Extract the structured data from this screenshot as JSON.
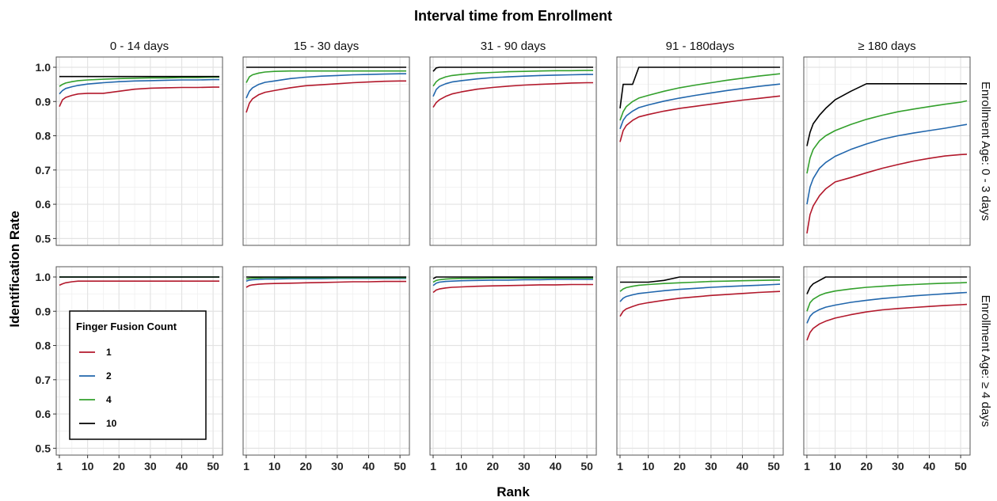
{
  "chart_data": {
    "type": "line",
    "title": "Interval time from Enrollment",
    "xlabel": "Rank",
    "ylabel": "Identification Rate",
    "xlim": [
      0,
      53
    ],
    "ylim": [
      0.48,
      1.03
    ],
    "x_ticks": [
      1,
      10,
      20,
      30,
      40,
      50
    ],
    "x_tick_labels": [
      "1",
      "10",
      "20",
      "30",
      "40",
      "50"
    ],
    "y_ticks": [
      0.5,
      0.6,
      0.7,
      0.8,
      0.9,
      1.0
    ],
    "y_tick_labels": [
      "0.5",
      "0.6",
      "0.7",
      "0.8",
      "0.9",
      "1.0"
    ],
    "grid": true,
    "columns": [
      "0 - 14 days",
      "15 - 30 days",
      "31 - 90 days",
      "91 - 180days",
      "≥ 180 days"
    ],
    "rows": [
      "Enrollment Age: 0 - 3 days",
      "Enrollment Age: ≥ 4 days"
    ],
    "legend": {
      "title": "Finger Fusion Count",
      "placement": "bottom-left",
      "entries": [
        {
          "label": "1",
          "color": "#b2182b"
        },
        {
          "label": "2",
          "color": "#2166ac"
        },
        {
          "label": "4",
          "color": "#33a02c"
        },
        {
          "label": "10",
          "color": "#000000"
        }
      ]
    },
    "x": [
      1,
      2,
      3,
      5,
      7,
      10,
      15,
      20,
      25,
      30,
      35,
      40,
      45,
      50,
      52
    ],
    "panels": [
      {
        "row": 0,
        "col": 0,
        "series": [
          {
            "name": "1",
            "values": [
              0.885,
              0.905,
              0.912,
              0.918,
              0.922,
              0.924,
              0.924,
              0.93,
              0.936,
              0.939,
              0.94,
              0.941,
              0.941,
              0.942,
              0.942
            ]
          },
          {
            "name": "2",
            "values": [
              0.922,
              0.932,
              0.938,
              0.943,
              0.947,
              0.951,
              0.955,
              0.958,
              0.96,
              0.961,
              0.962,
              0.963,
              0.963,
              0.964,
              0.964
            ]
          },
          {
            "name": "4",
            "values": [
              0.944,
              0.95,
              0.954,
              0.958,
              0.961,
              0.963,
              0.965,
              0.967,
              0.968,
              0.969,
              0.969,
              0.97,
              0.97,
              0.971,
              0.971
            ]
          },
          {
            "name": "10",
            "values": [
              0.973,
              0.973,
              0.973,
              0.973,
              0.973,
              0.973,
              0.973,
              0.973,
              0.973,
              0.973,
              0.973,
              0.973,
              0.973,
              0.973,
              0.973
            ]
          }
        ]
      },
      {
        "row": 0,
        "col": 1,
        "series": [
          {
            "name": "1",
            "values": [
              0.868,
              0.895,
              0.908,
              0.92,
              0.927,
              0.932,
              0.94,
              0.946,
              0.949,
              0.952,
              0.955,
              0.957,
              0.959,
              0.96,
              0.96
            ]
          },
          {
            "name": "2",
            "values": [
              0.91,
              0.93,
              0.94,
              0.95,
              0.956,
              0.96,
              0.967,
              0.971,
              0.974,
              0.976,
              0.978,
              0.979,
              0.98,
              0.981,
              0.981
            ]
          },
          {
            "name": "4",
            "values": [
              0.955,
              0.972,
              0.978,
              0.983,
              0.986,
              0.988,
              0.989,
              0.989,
              0.989,
              0.989,
              0.989,
              0.989,
              0.989,
              0.989,
              0.989
            ]
          },
          {
            "name": "10",
            "values": [
              1.0,
              1.0,
              1.0,
              1.0,
              1.0,
              1.0,
              1.0,
              1.0,
              1.0,
              1.0,
              1.0,
              1.0,
              1.0,
              1.0,
              1.0
            ]
          }
        ]
      },
      {
        "row": 0,
        "col": 2,
        "series": [
          {
            "name": "1",
            "values": [
              0.883,
              0.897,
              0.905,
              0.915,
              0.922,
              0.928,
              0.936,
              0.941,
              0.945,
              0.948,
              0.95,
              0.952,
              0.954,
              0.955,
              0.955
            ]
          },
          {
            "name": "2",
            "values": [
              0.915,
              0.935,
              0.944,
              0.952,
              0.957,
              0.961,
              0.966,
              0.97,
              0.972,
              0.974,
              0.976,
              0.977,
              0.978,
              0.979,
              0.979
            ]
          },
          {
            "name": "4",
            "values": [
              0.945,
              0.958,
              0.965,
              0.972,
              0.976,
              0.979,
              0.983,
              0.985,
              0.987,
              0.988,
              0.989,
              0.99,
              0.99,
              0.991,
              0.991
            ]
          },
          {
            "name": "10",
            "values": [
              0.988,
              0.998,
              1.0,
              1.0,
              1.0,
              1.0,
              1.0,
              1.0,
              1.0,
              1.0,
              1.0,
              1.0,
              1.0,
              1.0,
              1.0
            ]
          }
        ]
      },
      {
        "row": 0,
        "col": 3,
        "series": [
          {
            "name": "1",
            "values": [
              0.782,
              0.815,
              0.83,
              0.845,
              0.855,
              0.862,
              0.872,
              0.88,
              0.886,
              0.892,
              0.898,
              0.904,
              0.909,
              0.914,
              0.916
            ]
          },
          {
            "name": "2",
            "values": [
              0.82,
              0.845,
              0.858,
              0.872,
              0.882,
              0.89,
              0.901,
              0.91,
              0.918,
              0.925,
              0.932,
              0.938,
              0.944,
              0.949,
              0.951
            ]
          },
          {
            "name": "4",
            "values": [
              0.845,
              0.87,
              0.885,
              0.9,
              0.91,
              0.918,
              0.93,
              0.94,
              0.948,
              0.955,
              0.962,
              0.968,
              0.974,
              0.979,
              0.981
            ]
          },
          {
            "name": "10",
            "values": [
              0.88,
              0.95,
              0.95,
              0.95,
              1.0,
              1.0,
              1.0,
              1.0,
              1.0,
              1.0,
              1.0,
              1.0,
              1.0,
              1.0,
              1.0
            ]
          }
        ]
      },
      {
        "row": 0,
        "col": 4,
        "series": [
          {
            "name": "1",
            "values": [
              0.515,
              0.57,
              0.595,
              0.625,
              0.645,
              0.665,
              0.678,
              0.692,
              0.705,
              0.716,
              0.726,
              0.734,
              0.741,
              0.745,
              0.746
            ]
          },
          {
            "name": "2",
            "values": [
              0.6,
              0.65,
              0.675,
              0.705,
              0.722,
              0.74,
              0.76,
              0.776,
              0.79,
              0.8,
              0.808,
              0.815,
              0.822,
              0.83,
              0.833
            ]
          },
          {
            "name": "4",
            "values": [
              0.69,
              0.735,
              0.76,
              0.785,
              0.8,
              0.815,
              0.833,
              0.848,
              0.86,
              0.87,
              0.878,
              0.885,
              0.892,
              0.898,
              0.902
            ]
          },
          {
            "name": "10",
            "values": [
              0.77,
              0.81,
              0.835,
              0.86,
              0.88,
              0.905,
              0.93,
              0.952,
              0.952,
              0.952,
              0.952,
              0.952,
              0.952,
              0.952,
              0.952
            ]
          }
        ]
      },
      {
        "row": 1,
        "col": 0,
        "series": [
          {
            "name": "1",
            "values": [
              0.976,
              0.98,
              0.983,
              0.986,
              0.988,
              0.988,
              0.988,
              0.988,
              0.988,
              0.988,
              0.988,
              0.988,
              0.988,
              0.988,
              0.988
            ]
          },
          {
            "name": "2",
            "values": [
              1.0,
              1.0,
              1.0,
              1.0,
              1.0,
              1.0,
              1.0,
              1.0,
              1.0,
              1.0,
              1.0,
              1.0,
              1.0,
              1.0,
              1.0
            ]
          },
          {
            "name": "4",
            "values": [
              1.0,
              1.0,
              1.0,
              1.0,
              1.0,
              1.0,
              1.0,
              1.0,
              1.0,
              1.0,
              1.0,
              1.0,
              1.0,
              1.0,
              1.0
            ]
          },
          {
            "name": "10",
            "values": [
              1.0,
              1.0,
              1.0,
              1.0,
              1.0,
              1.0,
              1.0,
              1.0,
              1.0,
              1.0,
              1.0,
              1.0,
              1.0,
              1.0,
              1.0
            ]
          }
        ]
      },
      {
        "row": 1,
        "col": 1,
        "series": [
          {
            "name": "1",
            "values": [
              0.97,
              0.975,
              0.977,
              0.979,
              0.98,
              0.981,
              0.982,
              0.983,
              0.984,
              0.985,
              0.986,
              0.986,
              0.987,
              0.987,
              0.987
            ]
          },
          {
            "name": "2",
            "values": [
              0.988,
              0.991,
              0.992,
              0.993,
              0.994,
              0.994,
              0.995,
              0.995,
              0.995,
              0.996,
              0.996,
              0.996,
              0.996,
              0.996,
              0.996
            ]
          },
          {
            "name": "4",
            "values": [
              0.994,
              0.996,
              0.997,
              0.997,
              0.998,
              0.998,
              0.998,
              0.998,
              0.998,
              0.998,
              0.998,
              0.998,
              0.998,
              0.998,
              0.998
            ]
          },
          {
            "name": "10",
            "values": [
              1.0,
              1.0,
              1.0,
              1.0,
              1.0,
              1.0,
              1.0,
              1.0,
              1.0,
              1.0,
              1.0,
              1.0,
              1.0,
              1.0,
              1.0
            ]
          }
        ]
      },
      {
        "row": 1,
        "col": 2,
        "series": [
          {
            "name": "1",
            "values": [
              0.955,
              0.962,
              0.965,
              0.968,
              0.97,
              0.971,
              0.973,
              0.974,
              0.975,
              0.976,
              0.977,
              0.977,
              0.978,
              0.978,
              0.978
            ]
          },
          {
            "name": "2",
            "values": [
              0.975,
              0.982,
              0.985,
              0.987,
              0.988,
              0.989,
              0.99,
              0.991,
              0.991,
              0.992,
              0.992,
              0.993,
              0.993,
              0.993,
              0.993
            ]
          },
          {
            "name": "4",
            "values": [
              0.985,
              0.99,
              0.992,
              0.994,
              0.995,
              0.996,
              0.996,
              0.997,
              0.997,
              0.997,
              0.997,
              0.997,
              0.997,
              0.997,
              0.997
            ]
          },
          {
            "name": "10",
            "values": [
              0.995,
              1.0,
              1.0,
              1.0,
              1.0,
              1.0,
              1.0,
              1.0,
              1.0,
              1.0,
              1.0,
              1.0,
              1.0,
              1.0,
              1.0
            ]
          }
        ]
      },
      {
        "row": 1,
        "col": 3,
        "series": [
          {
            "name": "1",
            "values": [
              0.885,
              0.9,
              0.907,
              0.914,
              0.92,
              0.925,
              0.932,
              0.938,
              0.942,
              0.946,
              0.949,
              0.952,
              0.955,
              0.957,
              0.958
            ]
          },
          {
            "name": "2",
            "values": [
              0.928,
              0.938,
              0.943,
              0.948,
              0.952,
              0.955,
              0.96,
              0.964,
              0.967,
              0.97,
              0.972,
              0.974,
              0.976,
              0.978,
              0.979
            ]
          },
          {
            "name": "4",
            "values": [
              0.958,
              0.965,
              0.969,
              0.973,
              0.976,
              0.978,
              0.981,
              0.983,
              0.985,
              0.987,
              0.988,
              0.989,
              0.99,
              0.991,
              0.991
            ]
          },
          {
            "name": "10",
            "values": [
              0.985,
              0.985,
              0.985,
              0.985,
              0.985,
              0.985,
              0.99,
              1.0,
              1.0,
              1.0,
              1.0,
              1.0,
              1.0,
              1.0,
              1.0
            ]
          }
        ]
      },
      {
        "row": 1,
        "col": 4,
        "series": [
          {
            "name": "1",
            "values": [
              0.815,
              0.838,
              0.85,
              0.863,
              0.871,
              0.88,
              0.89,
              0.898,
              0.904,
              0.908,
              0.911,
              0.914,
              0.917,
              0.919,
              0.92
            ]
          },
          {
            "name": "2",
            "values": [
              0.865,
              0.885,
              0.895,
              0.905,
              0.912,
              0.918,
              0.926,
              0.932,
              0.937,
              0.941,
              0.945,
              0.948,
              0.951,
              0.954,
              0.955
            ]
          },
          {
            "name": "4",
            "values": [
              0.9,
              0.925,
              0.935,
              0.946,
              0.953,
              0.959,
              0.965,
              0.97,
              0.973,
              0.976,
              0.978,
              0.98,
              0.982,
              0.983,
              0.984
            ]
          },
          {
            "name": "10",
            "values": [
              0.95,
              0.97,
              0.98,
              0.99,
              1.0,
              1.0,
              1.0,
              1.0,
              1.0,
              1.0,
              1.0,
              1.0,
              1.0,
              1.0,
              1.0
            ]
          }
        ]
      }
    ]
  }
}
